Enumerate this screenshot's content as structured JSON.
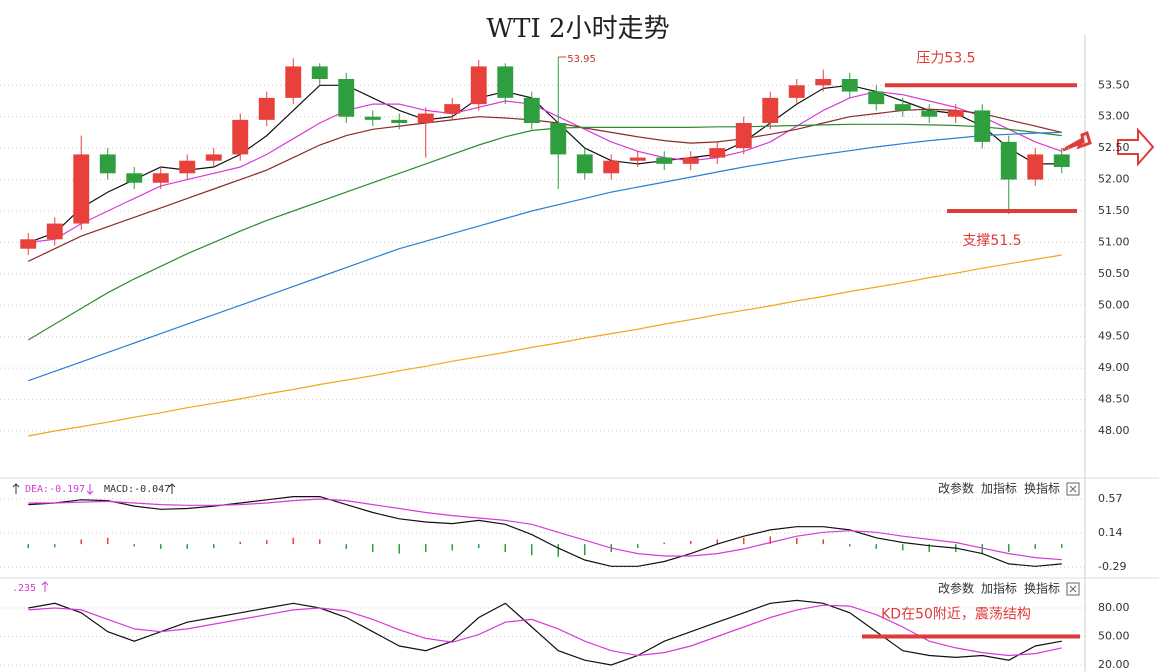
{
  "chart_data": [
    {
      "type": "candlestick",
      "title": "WTI 2小时走势",
      "open": [
        50.9,
        51.05,
        51.3,
        52.4,
        52.1,
        51.95,
        52.1,
        52.3,
        52.4,
        52.95,
        53.3,
        53.8,
        53.6,
        53.0,
        52.95,
        52.9,
        53.05,
        53.2,
        53.8,
        53.3,
        52.9,
        52.4,
        52.1,
        52.3,
        52.35,
        52.25,
        52.35,
        52.5,
        52.9,
        53.3,
        53.5,
        53.6,
        53.4,
        53.2,
        53.1,
        53.0,
        53.1,
        52.6,
        52.0,
        52.4
      ],
      "high": [
        51.15,
        51.4,
        52.7,
        52.5,
        52.2,
        52.2,
        52.4,
        52.5,
        53.05,
        53.4,
        53.93,
        53.85,
        53.7,
        53.1,
        53.05,
        53.15,
        53.3,
        53.9,
        53.85,
        53.4,
        53.95,
        52.5,
        52.4,
        52.45,
        52.45,
        52.45,
        52.6,
        53.0,
        53.4,
        53.6,
        53.75,
        53.7,
        53.5,
        53.3,
        53.2,
        53.2,
        53.2,
        52.7,
        52.5,
        52.5
      ],
      "low": [
        50.8,
        50.95,
        51.2,
        52.0,
        51.85,
        51.85,
        52.0,
        52.2,
        52.3,
        52.85,
        53.2,
        53.5,
        52.9,
        52.85,
        52.8,
        52.35,
        52.95,
        53.1,
        53.2,
        52.8,
        51.85,
        52.0,
        52.0,
        52.2,
        52.15,
        52.15,
        52.25,
        52.4,
        52.8,
        53.2,
        53.4,
        53.3,
        53.1,
        53.0,
        52.9,
        52.9,
        52.5,
        51.45,
        51.9,
        52.1
      ],
      "close": [
        51.05,
        51.3,
        52.4,
        52.1,
        51.95,
        52.1,
        52.3,
        52.4,
        52.95,
        53.3,
        53.8,
        53.6,
        53.0,
        52.95,
        52.9,
        53.05,
        53.2,
        53.8,
        53.3,
        52.9,
        52.4,
        52.1,
        52.3,
        52.35,
        52.25,
        52.35,
        52.5,
        52.9,
        53.3,
        53.5,
        53.6,
        53.4,
        53.2,
        53.1,
        53.0,
        53.1,
        52.6,
        52.0,
        52.4,
        52.2
      ],
      "up_color": "#e8403a",
      "down_color": "#2e9e3e",
      "series": [
        {
          "color": "#111111",
          "values": [
            51.0,
            51.15,
            51.55,
            51.8,
            52.0,
            52.2,
            52.15,
            52.2,
            52.4,
            52.7,
            53.1,
            53.5,
            53.5,
            53.3,
            53.1,
            52.95,
            53.0,
            53.3,
            53.4,
            53.3,
            52.9,
            52.5,
            52.3,
            52.25,
            52.3,
            52.35,
            52.4,
            52.6,
            52.9,
            53.2,
            53.45,
            53.5,
            53.4,
            53.25,
            53.1,
            53.05,
            52.85,
            52.5,
            52.25,
            52.25
          ]
        },
        {
          "color": "#d63bd6",
          "values": [
            51.0,
            51.05,
            51.3,
            51.5,
            51.7,
            51.9,
            52.0,
            52.1,
            52.2,
            52.4,
            52.65,
            52.9,
            53.1,
            53.2,
            53.2,
            53.1,
            53.05,
            53.15,
            53.25,
            53.2,
            53.0,
            52.8,
            52.6,
            52.45,
            52.35,
            52.3,
            52.35,
            52.45,
            52.6,
            52.85,
            53.1,
            53.3,
            53.4,
            53.35,
            53.25,
            53.15,
            53.0,
            52.8,
            52.6,
            52.45
          ]
        },
        {
          "color": "#8b2a2a",
          "values": [
            50.7,
            50.9,
            51.1,
            51.25,
            51.4,
            51.55,
            51.7,
            51.85,
            52.0,
            52.15,
            52.35,
            52.55,
            52.7,
            52.8,
            52.85,
            52.9,
            52.95,
            53.0,
            52.98,
            52.95,
            52.9,
            52.82,
            52.75,
            52.68,
            52.62,
            52.58,
            52.6,
            52.65,
            52.72,
            52.8,
            52.9,
            53.0,
            53.05,
            53.1,
            53.12,
            53.1,
            53.05,
            52.95,
            52.85,
            52.75
          ]
        },
        {
          "color": "#2e8b2e",
          "values": [
            49.45,
            49.7,
            49.95,
            50.2,
            50.42,
            50.62,
            50.82,
            51.0,
            51.18,
            51.35,
            51.5,
            51.65,
            51.8,
            51.95,
            52.1,
            52.25,
            52.4,
            52.55,
            52.68,
            52.78,
            52.82,
            52.83,
            52.83,
            52.83,
            52.83,
            52.83,
            52.84,
            52.84,
            52.85,
            52.86,
            52.87,
            52.88,
            52.88,
            52.88,
            52.87,
            52.86,
            52.84,
            52.8,
            52.75,
            52.7
          ]
        },
        {
          "color": "#2a7fd4",
          "values": [
            48.8,
            48.95,
            49.1,
            49.25,
            49.4,
            49.55,
            49.7,
            49.85,
            50.0,
            50.15,
            50.3,
            50.45,
            50.6,
            50.75,
            50.9,
            51.02,
            51.14,
            51.26,
            51.38,
            51.5,
            51.6,
            51.7,
            51.8,
            51.88,
            51.96,
            52.04,
            52.12,
            52.2,
            52.27,
            52.34,
            52.4,
            52.46,
            52.52,
            52.57,
            52.62,
            52.66,
            52.7,
            52.72,
            52.74,
            52.75
          ]
        },
        {
          "color": "#f0a818",
          "values": [
            47.92,
            48.0,
            48.07,
            48.14,
            48.22,
            48.29,
            48.37,
            48.44,
            48.51,
            48.59,
            48.66,
            48.74,
            48.81,
            48.88,
            48.96,
            49.03,
            49.11,
            49.18,
            49.25,
            49.33,
            49.4,
            49.48,
            49.55,
            49.62,
            49.7,
            49.77,
            49.85,
            49.92,
            49.99,
            50.07,
            50.14,
            50.22,
            50.29,
            50.36,
            50.44,
            50.51,
            50.59,
            50.66,
            50.73,
            50.8
          ]
        }
      ],
      "ylim": [
        47.3,
        54.3
      ],
      "yticks": [
        {
          "value": 53.5,
          "label": "53.50"
        },
        {
          "value": 53,
          "label": "53.00"
        },
        {
          "value": 52.5,
          "label": "52.50"
        },
        {
          "value": 52,
          "label": "52.00"
        },
        {
          "value": 51.5,
          "label": "51.50"
        },
        {
          "value": 51,
          "label": "51.00"
        },
        {
          "value": 50.5,
          "label": "50.50"
        },
        {
          "value": 50,
          "label": "50.00"
        },
        {
          "value": 49.5,
          "label": "49.50"
        },
        {
          "value": 49,
          "label": "49.00"
        },
        {
          "value": 48.5,
          "label": "48.50"
        },
        {
          "value": 48,
          "label": "48.00"
        }
      ],
      "grid": true,
      "annotations": [
        {
          "text": "压力53.5",
          "value": 53.5,
          "color": "#e03a3a"
        },
        {
          "text": "支撑51.5",
          "value": 51.5,
          "color": "#e03a3a"
        }
      ]
    },
    {
      "type": "macd",
      "header": [
        "DEA:-0.197",
        "MACD:-0.047"
      ],
      "buttons": [
        "改参数",
        "加指标",
        "换指标"
      ],
      "histogram": [
        -0.05,
        -0.04,
        0.06,
        0.08,
        -0.03,
        -0.06,
        -0.06,
        -0.05,
        0.03,
        0.05,
        0.08,
        0.06,
        -0.06,
        -0.1,
        -0.12,
        -0.1,
        -0.08,
        -0.05,
        -0.1,
        -0.14,
        -0.16,
        -0.14,
        -0.1,
        -0.05,
        0.02,
        0.04,
        0.06,
        0.08,
        0.1,
        0.08,
        0.06,
        -0.03,
        -0.06,
        -0.08,
        -0.1,
        -0.1,
        -0.12,
        -0.1,
        -0.06,
        -0.047
      ],
      "up_color": "#e8403a",
      "down_color": "#2e9e3e",
      "series": [
        {
          "color": "#111111",
          "values": [
            0.5,
            0.52,
            0.56,
            0.55,
            0.48,
            0.44,
            0.45,
            0.48,
            0.52,
            0.56,
            0.6,
            0.6,
            0.5,
            0.4,
            0.32,
            0.28,
            0.26,
            0.3,
            0.25,
            0.12,
            -0.05,
            -0.2,
            -0.28,
            -0.28,
            -0.22,
            -0.12,
            0.0,
            0.1,
            0.18,
            0.22,
            0.22,
            0.18,
            0.08,
            0.02,
            -0.02,
            -0.05,
            -0.12,
            -0.25,
            -0.28,
            -0.25
          ]
        },
        {
          "color": "#d63bd6",
          "values": [
            0.52,
            0.52,
            0.53,
            0.54,
            0.52,
            0.5,
            0.49,
            0.49,
            0.5,
            0.52,
            0.55,
            0.57,
            0.55,
            0.5,
            0.45,
            0.4,
            0.36,
            0.33,
            0.3,
            0.25,
            0.15,
            0.05,
            -0.05,
            -0.12,
            -0.15,
            -0.15,
            -0.12,
            -0.06,
            0.02,
            0.1,
            0.15,
            0.17,
            0.15,
            0.1,
            0.06,
            0.02,
            -0.05,
            -0.12,
            -0.17,
            -0.197
          ]
        }
      ],
      "ylim": [
        -0.39,
        0.785
      ],
      "yticks": [
        0.57,
        0.14,
        -0.29
      ],
      "grid": true
    },
    {
      "type": "kd",
      "header": [
        ".235"
      ],
      "buttons": [
        "改参数",
        "加指标",
        "换指标"
      ],
      "series": [
        {
          "color": "#111111",
          "values": [
            80,
            85,
            75,
            55,
            45,
            55,
            65,
            70,
            75,
            80,
            85,
            80,
            70,
            55,
            40,
            35,
            45,
            70,
            85,
            60,
            35,
            25,
            20,
            30,
            45,
            55,
            65,
            75,
            85,
            88,
            85,
            75,
            55,
            35,
            30,
            28,
            30,
            25,
            40,
            45
          ]
        },
        {
          "color": "#d63bd6",
          "values": [
            78,
            80,
            78,
            68,
            58,
            55,
            58,
            63,
            68,
            73,
            78,
            80,
            77,
            68,
            57,
            48,
            44,
            52,
            65,
            68,
            58,
            45,
            35,
            30,
            33,
            40,
            50,
            60,
            70,
            78,
            83,
            82,
            73,
            60,
            45,
            38,
            33,
            30,
            32,
            38
          ]
        }
      ],
      "ylim": [
        12.6,
        109.5
      ],
      "yticks": [
        {
          "value": 80,
          "label": "80.00"
        },
        {
          "value": 50,
          "label": "50.00"
        },
        {
          "value": 20,
          "label": "20.00"
        }
      ],
      "grid": true,
      "annotations": [
        {
          "text": "KD在50附近，震荡结构",
          "value": 50,
          "color": "#e03a3a"
        }
      ]
    }
  ]
}
